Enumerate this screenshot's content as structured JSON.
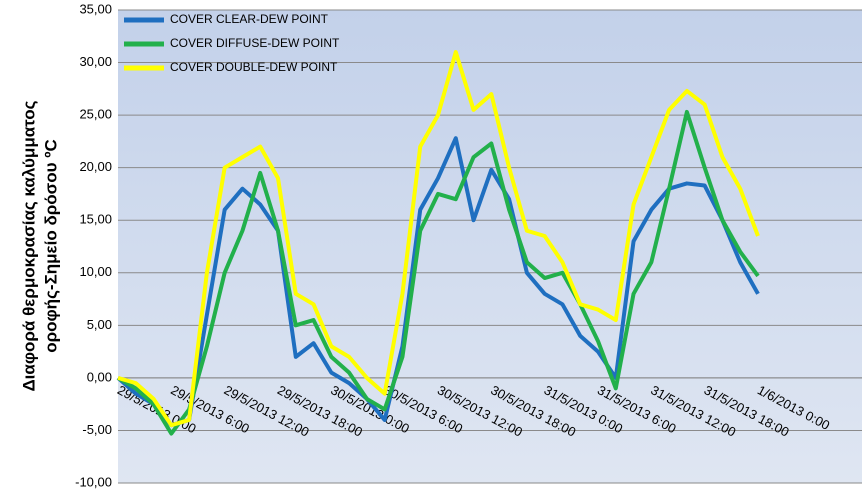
{
  "chart_data": {
    "type": "line",
    "ylabel": [
      "Διαφορά θερμοκρασίας καλύμματος",
      "οροφής-Σημείο δρόσου ºC"
    ],
    "categories": [
      "29/5/2013 0:00",
      null,
      null,
      "29/5/2013 6:00",
      null,
      null,
      "29/5/2013 12:00",
      null,
      null,
      "29/5/2013 18:00",
      null,
      null,
      "30/5/2013 0:00",
      null,
      null,
      "30/5/2013 6:00",
      null,
      null,
      "30/5/2013 12:00",
      null,
      null,
      "30/5/2013 18:00",
      null,
      null,
      "31/5/2013 0:00",
      null,
      null,
      "31/5/2013 6:00",
      null,
      null,
      "31/5/2013 12:00",
      null,
      null,
      "31/5/2013 18:00",
      null,
      null,
      "1/6/2013 0:00"
    ],
    "series": [
      {
        "name": "COVER CLEAR-DEW POINT",
        "color": "#1f6fc0",
        "values": [
          0,
          -1.5,
          -2.5,
          -4.5,
          -4,
          6,
          16,
          18,
          16.5,
          14,
          2,
          3.3,
          0.5,
          -0.5,
          -2,
          -4,
          3,
          16,
          19,
          22.8,
          15,
          19.8,
          17,
          10,
          8,
          7,
          4,
          2.5,
          0,
          13,
          16,
          18,
          18.5,
          18.3,
          15,
          11,
          8
        ]
      },
      {
        "name": "COVER DIFFUSE-DEW POINT",
        "color": "#22b04b",
        "values": [
          0,
          -1,
          -2.5,
          -5.3,
          -3,
          3,
          10,
          14,
          19.5,
          14,
          5,
          5.5,
          2,
          0.5,
          -2,
          -3,
          2,
          14,
          17.5,
          17,
          21,
          22.3,
          16,
          11,
          9.5,
          10,
          7,
          3.5,
          -1,
          8,
          11,
          18,
          25.3,
          20,
          15,
          12,
          9.7
        ]
      },
      {
        "name": "COVER DOUBLE-DEW POINT",
        "color": "#ffff00",
        "values": [
          0,
          -0.5,
          -2,
          -4.5,
          -4,
          10,
          20,
          21,
          22,
          19,
          8,
          7,
          3,
          2,
          0,
          -1.5,
          8,
          22,
          25,
          31,
          25.5,
          27,
          20,
          14,
          13.5,
          11,
          7,
          6.5,
          5.5,
          16.5,
          21,
          25.5,
          27.3,
          26,
          21,
          18,
          13.5
        ]
      }
    ],
    "ylim": [
      -10,
      35
    ],
    "yticks": [
      {
        "value": -10,
        "label": "-10,00"
      },
      {
        "value": -5,
        "label": "-5,00"
      },
      {
        "value": 0,
        "label": "0,00"
      },
      {
        "value": 5,
        "label": "5,00"
      },
      {
        "value": 10,
        "label": "10,00"
      },
      {
        "value": 15,
        "label": "15,00"
      },
      {
        "value": 20,
        "label": "20,00"
      },
      {
        "value": 25,
        "label": "25,00"
      },
      {
        "value": 30,
        "label": "30,00"
      },
      {
        "value": 35,
        "label": "35,00"
      }
    ],
    "grid": true,
    "legend": "upper left"
  }
}
